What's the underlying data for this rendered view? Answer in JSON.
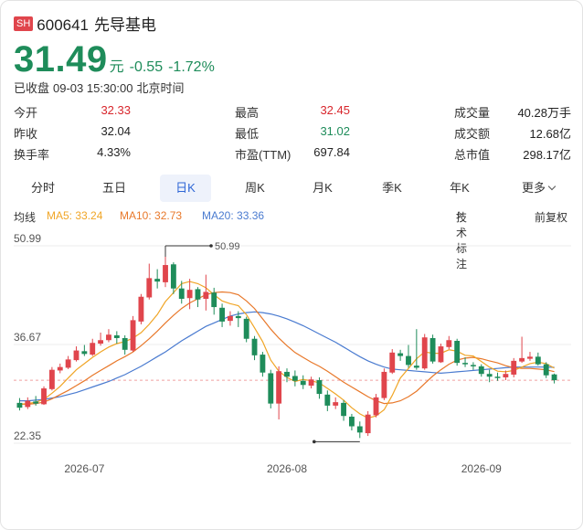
{
  "header": {
    "market_badge": "SH",
    "code": "600641",
    "name": "先导基电"
  },
  "quote": {
    "price": "31.49",
    "unit": "元",
    "change": "-0.55",
    "change_pct": "-1.72%",
    "status": "已收盘",
    "datetime": "09-03 15:30:00",
    "tz": "北京时间"
  },
  "stats": [
    [
      {
        "label": "今开",
        "value": "32.33",
        "color": "red"
      },
      {
        "label": "最高",
        "value": "32.45",
        "color": "red"
      },
      {
        "label": "成交量",
        "value": "40.28万手",
        "color": "dark"
      }
    ],
    [
      {
        "label": "昨收",
        "value": "32.04",
        "color": "dark"
      },
      {
        "label": "最低",
        "value": "31.02",
        "color": "green"
      },
      {
        "label": "成交额",
        "value": "12.68亿",
        "color": "dark"
      }
    ],
    [
      {
        "label": "换手率",
        "value": "4.33%",
        "color": "dark"
      },
      {
        "label": "市盈(TTM)",
        "value": "697.84",
        "color": "dark"
      },
      {
        "label": "总市值",
        "value": "298.17亿",
        "color": "dark"
      }
    ]
  ],
  "tabs": [
    "分时",
    "五日",
    "日K",
    "周K",
    "月K",
    "季K",
    "年K",
    "更多"
  ],
  "active_tab": "日K",
  "ma": {
    "label": "均线",
    "ma5": "MA5: 33.24",
    "ma10": "MA10: 32.73",
    "ma20": "MA20: 33.36",
    "tech_label": "技术标注",
    "adjust_label": "前复权"
  },
  "colors": {
    "up": "#e0454c",
    "down": "#1e8c5a",
    "ma5": "#f0a526",
    "ma10": "#e8782a",
    "ma20": "#4a7bd0",
    "active_tab": "#2f67d6"
  },
  "chart_data": {
    "type": "candlestick",
    "y_ticks": [
      "50.99",
      "36.67",
      "22.35"
    ],
    "ylim": [
      22.35,
      50.99
    ],
    "x_ticks": [
      "2026-07",
      "2026-08",
      "2026-09"
    ],
    "x_tick_index": [
      8,
      33,
      57
    ],
    "max_label": "50.99",
    "min_label": "22.35",
    "last_close": 31.49,
    "candles": [
      [
        28.2,
        27.5,
        28.9,
        27.1
      ],
      [
        27.6,
        28.5,
        29.0,
        27.3
      ],
      [
        28.4,
        28.1,
        29.2,
        27.8
      ],
      [
        28.0,
        30.3,
        30.6,
        27.9
      ],
      [
        30.2,
        33.0,
        33.4,
        30.0
      ],
      [
        32.9,
        33.4,
        33.9,
        32.5
      ],
      [
        33.3,
        34.5,
        35.0,
        33.1
      ],
      [
        34.4,
        35.8,
        36.4,
        34.2
      ],
      [
        35.7,
        35.3,
        36.6,
        35.0
      ],
      [
        35.2,
        36.9,
        37.5,
        35.0
      ],
      [
        36.8,
        37.3,
        38.4,
        36.5
      ],
      [
        37.3,
        38.1,
        38.9,
        37.0
      ],
      [
        38.0,
        37.6,
        38.6,
        36.8
      ],
      [
        37.6,
        35.9,
        38.0,
        35.2
      ],
      [
        35.8,
        40.2,
        40.8,
        35.6
      ],
      [
        40.0,
        43.6,
        44.0,
        39.6
      ],
      [
        43.5,
        46.3,
        48.4,
        43.2
      ],
      [
        46.2,
        45.8,
        47.6,
        44.8
      ],
      [
        45.7,
        48.2,
        49.4,
        45.0
      ],
      [
        48.3,
        44.8,
        48.6,
        44.0
      ],
      [
        44.8,
        43.3,
        45.9,
        42.6
      ],
      [
        43.4,
        44.6,
        46.2,
        41.8
      ],
      [
        44.7,
        43.2,
        45.0,
        42.1
      ],
      [
        43.3,
        44.3,
        46.8,
        41.6
      ],
      [
        44.2,
        42.1,
        44.9,
        41.0
      ],
      [
        42.0,
        40.0,
        42.6,
        39.2
      ],
      [
        40.1,
        40.8,
        41.5,
        39.4
      ],
      [
        40.8,
        40.5,
        41.5,
        39.2
      ],
      [
        40.4,
        37.5,
        40.7,
        37.0
      ],
      [
        37.5,
        35.1,
        37.9,
        34.4
      ],
      [
        35.2,
        32.6,
        35.6,
        32.0
      ],
      [
        32.5,
        28.1,
        33.0,
        27.4
      ],
      [
        28.1,
        32.8,
        33.5,
        25.8
      ],
      [
        32.7,
        32.0,
        33.2,
        31.2
      ],
      [
        32.1,
        31.4,
        32.9,
        30.6
      ],
      [
        31.4,
        30.8,
        32.2,
        30.2
      ],
      [
        30.7,
        31.6,
        32.0,
        30.3
      ],
      [
        31.5,
        29.5,
        31.9,
        28.8
      ],
      [
        29.4,
        27.8,
        30.0,
        27.0
      ],
      [
        27.8,
        28.3,
        29.0,
        27.3
      ],
      [
        28.2,
        26.3,
        28.6,
        25.6
      ],
      [
        26.2,
        24.8,
        26.6,
        24.2
      ],
      [
        24.8,
        23.9,
        25.5,
        23.1
      ],
      [
        23.8,
        26.5,
        27.0,
        23.4
      ],
      [
        26.4,
        29.0,
        29.5,
        26.1
      ],
      [
        28.9,
        32.7,
        33.2,
        28.6
      ],
      [
        32.6,
        35.5,
        36.0,
        32.4
      ],
      [
        35.4,
        35.0,
        35.9,
        34.3
      ],
      [
        35.0,
        33.7,
        36.6,
        33.3
      ],
      [
        33.6,
        33.3,
        38.9,
        33.0
      ],
      [
        33.2,
        37.7,
        38.2,
        33.0
      ],
      [
        37.6,
        34.2,
        38.1,
        33.9
      ],
      [
        34.1,
        36.4,
        36.8,
        34.0
      ],
      [
        36.3,
        37.3,
        37.9,
        36.0
      ],
      [
        37.2,
        34.0,
        37.5,
        33.6
      ],
      [
        34.0,
        33.8,
        34.8,
        33.4
      ],
      [
        33.7,
        33.5,
        34.1,
        33.0
      ],
      [
        33.5,
        32.4,
        33.8,
        32.0
      ],
      [
        32.4,
        32.0,
        33.0,
        31.2
      ],
      [
        32.0,
        31.8,
        32.6,
        31.4
      ],
      [
        31.9,
        32.4,
        32.9,
        31.5
      ],
      [
        32.3,
        34.3,
        34.7,
        31.9
      ],
      [
        34.2,
        34.7,
        37.8,
        34.0
      ],
      [
        34.6,
        34.9,
        35.6,
        34.3
      ],
      [
        34.9,
        33.8,
        35.5,
        33.6
      ],
      [
        33.8,
        32.2,
        34.1,
        31.8
      ],
      [
        32.33,
        31.49,
        32.45,
        31.02
      ]
    ],
    "ma5": [
      28.0,
      28.1,
      28.3,
      28.7,
      29.6,
      30.6,
      31.8,
      33.0,
      33.9,
      34.8,
      35.6,
      36.3,
      36.8,
      37.1,
      37.6,
      38.4,
      39.6,
      41.0,
      42.9,
      44.2,
      45.5,
      45.8,
      45.5,
      44.9,
      43.9,
      43.0,
      42.6,
      42.3,
      41.0,
      39.1,
      37.1,
      34.4,
      32.8,
      31.9,
      31.3,
      31.6,
      31.4,
      31.1,
      30.3,
      29.5,
      28.6,
      27.5,
      26.6,
      26.0,
      26.3,
      27.2,
      29.3,
      31.8,
      33.2,
      34.6,
      35.6,
      35.4,
      35.4,
      35.9,
      35.7,
      35.1,
      35.0,
      34.2,
      33.4,
      32.8,
      32.7,
      32.9,
      33.4,
      33.9,
      34.1,
      33.9,
      33.24
    ],
    "ma10": [
      28.0,
      28.0,
      28.1,
      28.3,
      28.8,
      29.4,
      30.0,
      30.7,
      31.4,
      32.2,
      32.9,
      33.6,
      34.3,
      34.9,
      35.6,
      36.5,
      37.5,
      38.6,
      39.8,
      40.9,
      41.9,
      42.7,
      43.3,
      43.9,
      44.2,
      44.3,
      44.2,
      43.9,
      43.0,
      41.9,
      40.4,
      38.9,
      37.6,
      36.5,
      35.5,
      34.8,
      34.1,
      33.5,
      32.8,
      32.0,
      31.2,
      30.5,
      29.8,
      29.1,
      28.5,
      28.1,
      28.2,
      28.5,
      29.1,
      29.9,
      31.0,
      32.1,
      33.0,
      33.8,
      34.4,
      34.7,
      34.8,
      34.6,
      34.3,
      34.0,
      33.6,
      33.3,
      33.2,
      33.2,
      33.1,
      33.0,
      32.73
    ],
    "ma20": [
      28.5,
      28.5,
      28.6,
      28.7,
      28.9,
      29.1,
      29.4,
      29.7,
      30.1,
      30.5,
      30.9,
      31.3,
      31.8,
      32.3,
      32.9,
      33.5,
      34.2,
      34.9,
      35.6,
      36.4,
      37.2,
      37.9,
      38.6,
      39.3,
      39.8,
      40.3,
      40.8,
      41.1,
      41.3,
      41.4,
      41.3,
      41.1,
      40.8,
      40.4,
      39.9,
      39.4,
      38.8,
      38.2,
      37.6,
      37.0,
      36.3,
      35.6,
      34.9,
      34.3,
      33.8,
      33.4,
      33.1,
      33.0,
      32.9,
      32.8,
      32.7,
      32.6,
      32.5,
      32.6,
      32.7,
      32.8,
      32.9,
      33.0,
      33.1,
      33.2,
      33.3,
      33.4,
      33.4,
      33.4,
      33.4,
      33.4,
      33.36
    ]
  }
}
